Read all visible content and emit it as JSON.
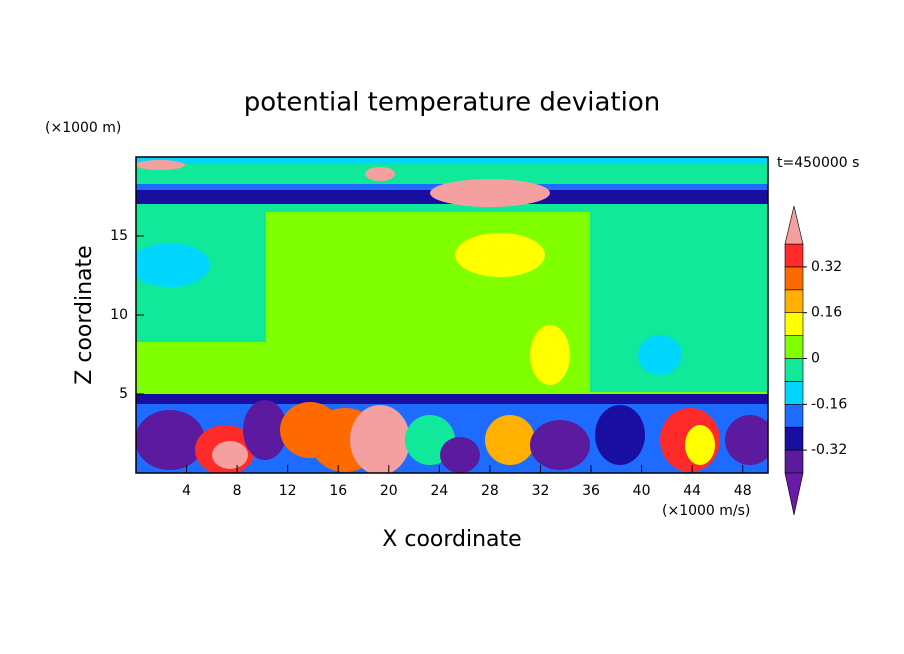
{
  "chart_data": {
    "type": "contour",
    "title": "potential temperature deviation",
    "x_label": "X coordinate",
    "y_label": "Z coordinate",
    "x_unit": "(×1000 m/s)",
    "y_unit": "(×1000 m)",
    "annotation": "t=450000 s",
    "xlim": [
      0,
      50
    ],
    "ylim": [
      0,
      20
    ],
    "xticks": [
      4,
      8,
      12,
      16,
      20,
      24,
      28,
      32,
      36,
      40,
      44,
      48
    ],
    "yticks": [
      5,
      10,
      15
    ],
    "colorbar": {
      "levels": [
        -0.4,
        -0.32,
        -0.24,
        -0.16,
        -0.08,
        0,
        0.08,
        0.16,
        0.24,
        0.32,
        0.4
      ],
      "colors": [
        "#5c1a9e",
        "#1a0ea0",
        "#1e6cff",
        "#00d6ff",
        "#10e89a",
        "#80ff00",
        "#ffff00",
        "#ffb000",
        "#ff6a00",
        "#ff2a2a"
      ],
      "under_color": "#6a1aa8",
      "over_color": "#f4a0a0",
      "ticks": [
        -0.32,
        -0.16,
        0,
        0.16,
        0.32
      ]
    }
  }
}
